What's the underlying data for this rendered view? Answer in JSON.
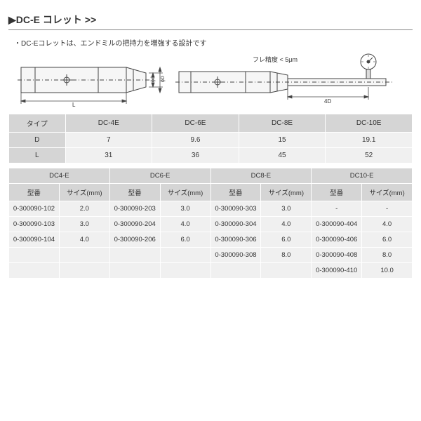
{
  "title": "▶DC-E コレット >>",
  "subtitle": "・DC-Eコレットは、エンドミルの把持力を増強する設計です",
  "runout_label": "フレ精度 < 5μm",
  "dim_labels": {
    "D": "ϕD",
    "d": "ϕd",
    "L": "L",
    "fourD": "4D"
  },
  "spec_table": {
    "headers": [
      "タイプ",
      "DC-4E",
      "DC-6E",
      "DC-8E",
      "DC-10E"
    ],
    "rows": [
      [
        "D",
        "7",
        "9.6",
        "15",
        "19.1"
      ],
      [
        "L",
        "31",
        "36",
        "45",
        "52"
      ]
    ]
  },
  "part_table": {
    "group_headers": [
      "DC4-E",
      "DC6-E",
      "DC8-E",
      "DC10-E"
    ],
    "sub_headers": [
      "型番",
      "サイズ(mm)",
      "型番",
      "サイズ(mm)",
      "型番",
      "サイズ(mm)",
      "型番",
      "サイズ(mm)"
    ],
    "rows": [
      [
        "0-300090-102",
        "2.0",
        "0-300090-203",
        "3.0",
        "0-300090-303",
        "3.0",
        "-",
        "-"
      ],
      [
        "0-300090-103",
        "3.0",
        "0-300090-204",
        "4.0",
        "0-300090-304",
        "4.0",
        "0-300090-404",
        "4.0"
      ],
      [
        "0-300090-104",
        "4.0",
        "0-300090-206",
        "6.0",
        "0-300090-306",
        "6.0",
        "0-300090-406",
        "6.0"
      ],
      [
        "",
        "",
        "",
        "",
        "0-300090-308",
        "8.0",
        "0-300090-408",
        "8.0"
      ],
      [
        "",
        "",
        "",
        "",
        "",
        "",
        "0-300090-410",
        "10.0"
      ]
    ]
  }
}
